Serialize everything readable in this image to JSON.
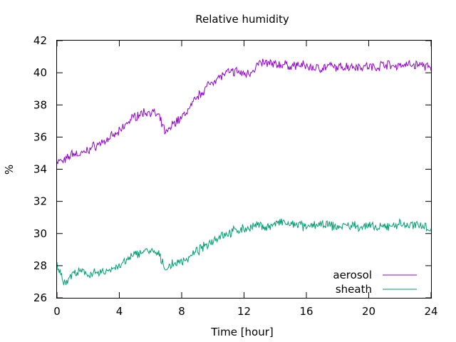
{
  "chart_data": {
    "type": "line",
    "title": "Relative humidity",
    "xlabel": "Time [hour]",
    "ylabel": "%",
    "xlim": [
      0,
      24
    ],
    "ylim": [
      26,
      42
    ],
    "xticks": [
      0,
      4,
      8,
      12,
      16,
      20,
      24
    ],
    "yticks": [
      26,
      28,
      30,
      32,
      34,
      36,
      38,
      40,
      42
    ],
    "grid": false,
    "legend": "bottom-right",
    "series": [
      {
        "name": "aerosol",
        "color": "#9400d3",
        "x": [
          0,
          0.5,
          1,
          1.5,
          2,
          2.5,
          3,
          3.5,
          4,
          4.5,
          5,
          5.5,
          6,
          6.5,
          7,
          7.5,
          8,
          8.5,
          9,
          9.5,
          10,
          10.5,
          11,
          11.5,
          12,
          12.5,
          13,
          13.5,
          14,
          14.5,
          15,
          15.5,
          16,
          16.5,
          17,
          17.5,
          18,
          18.5,
          19,
          19.5,
          20,
          20.5,
          21,
          21.5,
          22,
          22.5,
          23,
          23.5,
          24
        ],
        "values": [
          34.5,
          34.5,
          35.0,
          34.9,
          35.2,
          35.5,
          35.7,
          36.0,
          36.3,
          36.9,
          37.3,
          37.5,
          37.6,
          37.3,
          36.2,
          36.9,
          37.2,
          37.8,
          38.5,
          39.0,
          39.5,
          39.8,
          40.0,
          40.1,
          39.9,
          40.1,
          40.6,
          40.6,
          40.5,
          40.5,
          40.4,
          40.5,
          40.4,
          40.3,
          40.3,
          40.4,
          40.3,
          40.4,
          40.4,
          40.4,
          40.4,
          40.3,
          40.6,
          40.4,
          40.5,
          40.5,
          40.5,
          40.5,
          40.2
        ]
      },
      {
        "name": "sheath",
        "color": "#009e73",
        "x": [
          0,
          0.5,
          1,
          1.5,
          2,
          2.5,
          3,
          3.5,
          4,
          4.5,
          5,
          5.5,
          6,
          6.5,
          7,
          7.5,
          8,
          8.5,
          9,
          9.5,
          10,
          10.5,
          11,
          11.5,
          12,
          12.5,
          13,
          13.5,
          14,
          14.5,
          15,
          15.5,
          16,
          16.5,
          17,
          17.5,
          18,
          18.5,
          19,
          19.5,
          20,
          20.5,
          21,
          21.5,
          22,
          22.5,
          23,
          23.5,
          24
        ],
        "values": [
          28.0,
          26.9,
          27.5,
          27.6,
          27.5,
          27.5,
          27.6,
          27.8,
          28.0,
          28.3,
          28.7,
          28.9,
          28.9,
          28.7,
          27.8,
          28.1,
          28.3,
          28.5,
          28.9,
          29.2,
          29.6,
          29.9,
          30.0,
          30.2,
          30.3,
          30.4,
          30.5,
          30.4,
          30.6,
          30.7,
          30.5,
          30.6,
          30.3,
          30.6,
          30.5,
          30.5,
          30.4,
          30.5,
          30.5,
          30.4,
          30.5,
          30.3,
          30.4,
          30.5,
          30.6,
          30.5,
          30.5,
          30.6,
          30.2
        ]
      }
    ]
  }
}
